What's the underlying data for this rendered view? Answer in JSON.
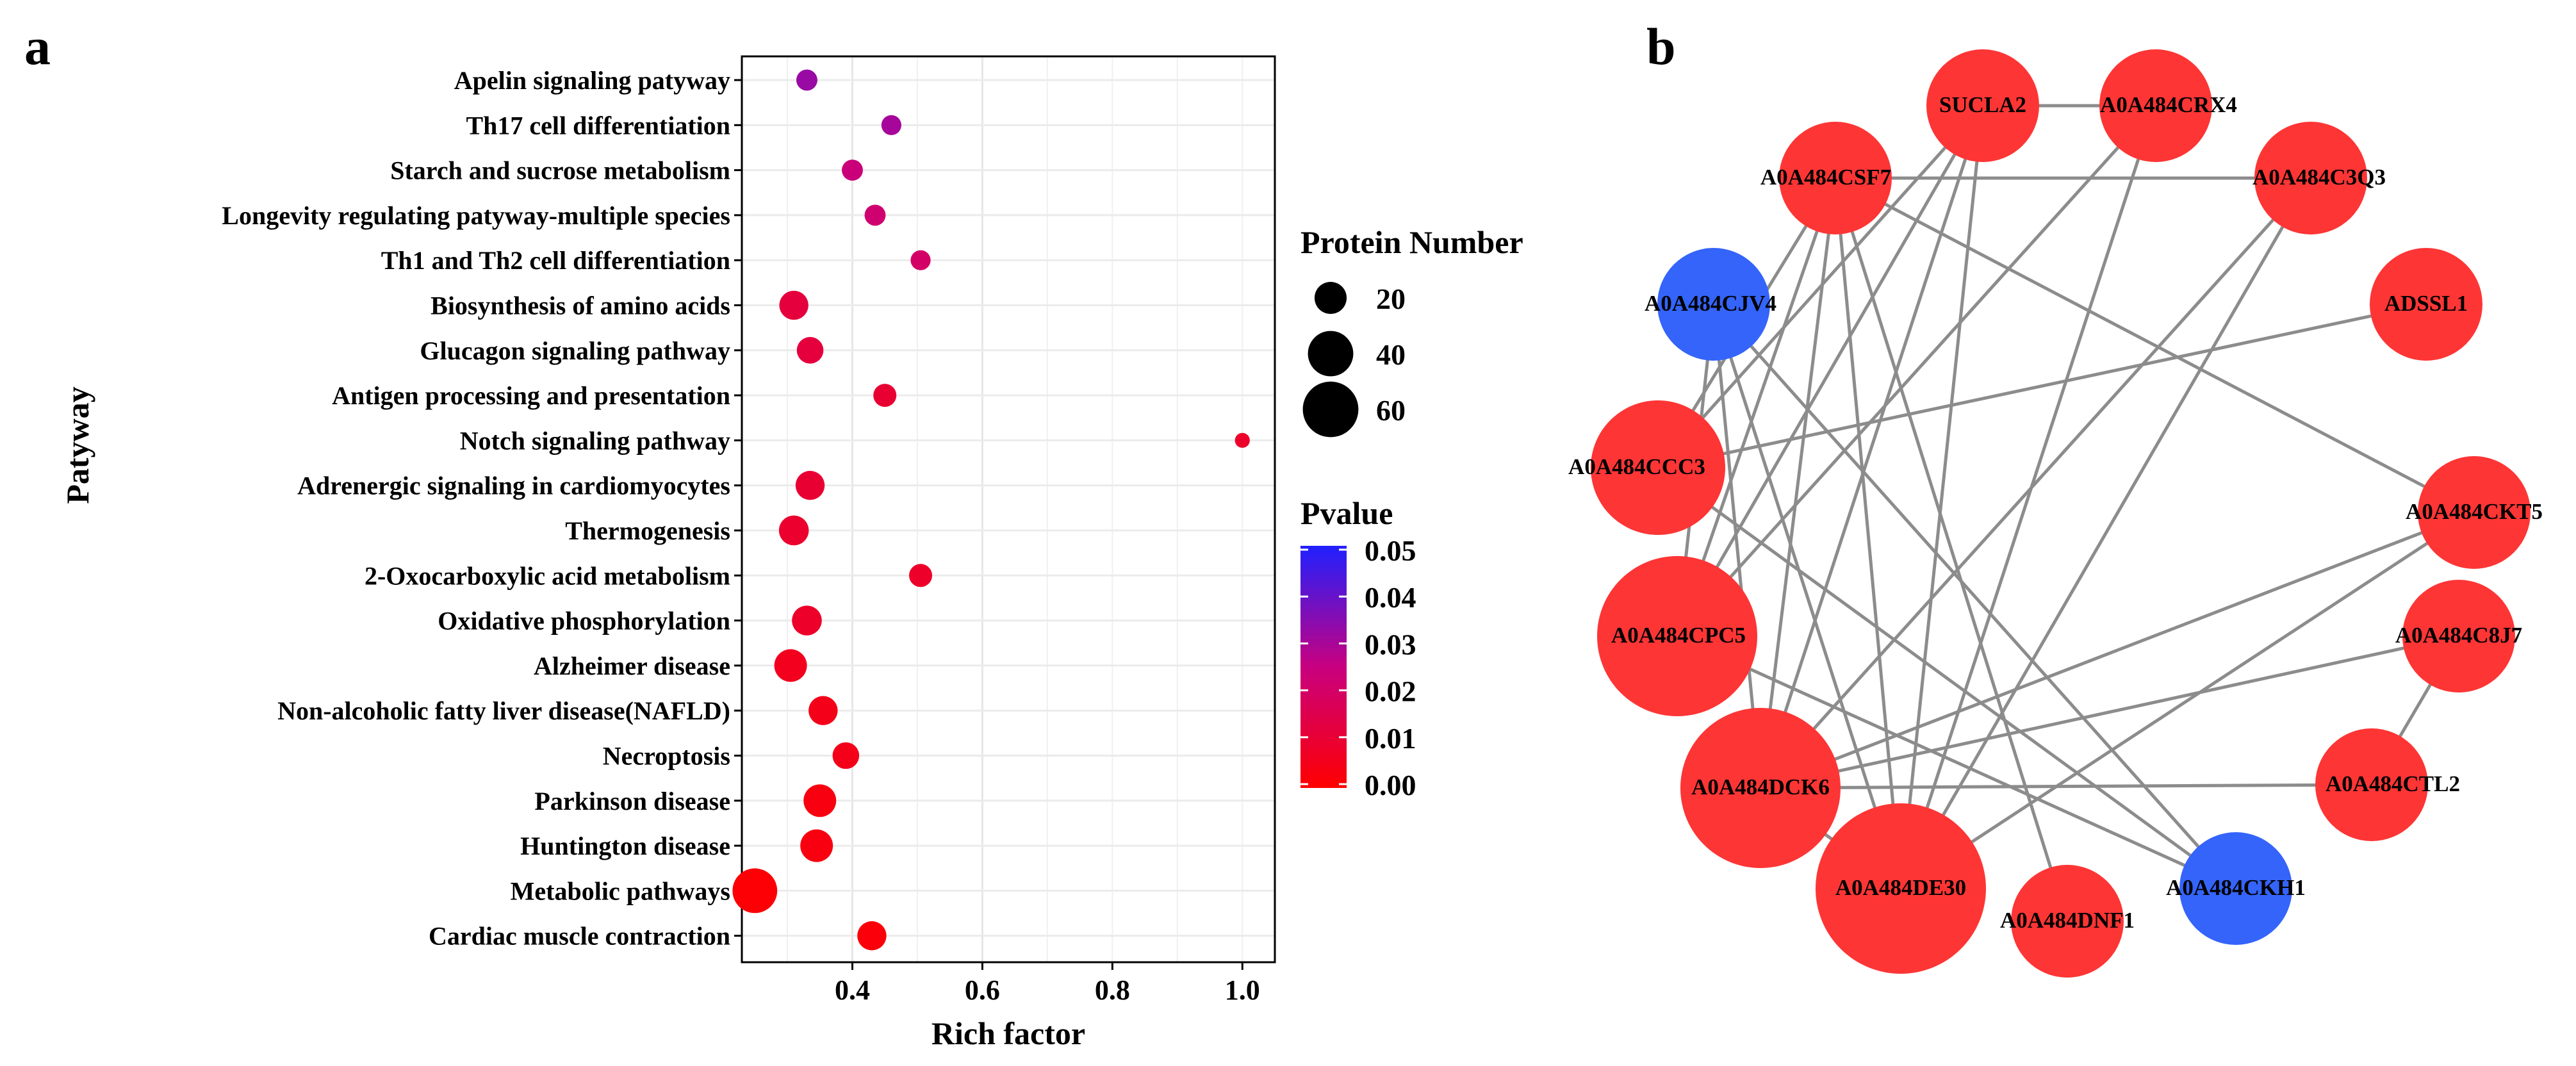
{
  "panel_labels": [
    "a",
    "b"
  ],
  "chart_data": [
    {
      "type": "scatter",
      "xlabel": "Rich factor",
      "ylabel": "Patyway",
      "xlim": [
        0.23,
        1.05
      ],
      "xticks": [
        0.4,
        0.6,
        0.8,
        1.0
      ],
      "xtick_labels": [
        "0.4",
        "0.6",
        "0.8",
        "1.0"
      ],
      "grid": true,
      "size_legend": {
        "title": "Protein Number",
        "values": [
          20,
          40,
          60
        ]
      },
      "color_legend": {
        "title": "Pvalue",
        "min": 0.0,
        "max": 0.05,
        "ticks": [
          "0.05",
          "0.04",
          "0.03",
          "0.02",
          "0.01",
          "0.00"
        ],
        "low_color": "#ff0000",
        "mid_color": "#c8007f",
        "high_color": "#2020ff"
      },
      "points": [
        {
          "pathway": "Apelin signaling patyway",
          "rich_factor": 0.33,
          "pvalue": 0.032,
          "count": 10
        },
        {
          "pathway": "Th17 cell differentiation",
          "rich_factor": 0.46,
          "pvalue": 0.03,
          "count": 9
        },
        {
          "pathway": "Starch and sucrose metabolism",
          "rich_factor": 0.4,
          "pvalue": 0.024,
          "count": 10
        },
        {
          "pathway": "Longevity regulating patyway-multiple species",
          "rich_factor": 0.435,
          "pvalue": 0.022,
          "count": 10
        },
        {
          "pathway": "Th1 and Th2 cell differentiation",
          "rich_factor": 0.505,
          "pvalue": 0.02,
          "count": 9
        },
        {
          "pathway": "Biosynthesis of amino acids",
          "rich_factor": 0.31,
          "pvalue": 0.012,
          "count": 19
        },
        {
          "pathway": "Glucagon signaling pathway",
          "rich_factor": 0.335,
          "pvalue": 0.012,
          "count": 16
        },
        {
          "pathway": "Antigen processing and presentation",
          "rich_factor": 0.45,
          "pvalue": 0.01,
          "count": 12
        },
        {
          "pathway": "Notch signaling pathway",
          "rich_factor": 1.0,
          "pvalue": 0.008,
          "count": 5
        },
        {
          "pathway": "Adrenergic signaling in cardiomyocytes",
          "rich_factor": 0.335,
          "pvalue": 0.01,
          "count": 19
        },
        {
          "pathway": "Thermogenesis",
          "rich_factor": 0.31,
          "pvalue": 0.009,
          "count": 20
        },
        {
          "pathway": "2-Oxocarboxylic acid metabolism",
          "rich_factor": 0.505,
          "pvalue": 0.008,
          "count": 12
        },
        {
          "pathway": "Oxidative phosphorylation",
          "rich_factor": 0.33,
          "pvalue": 0.008,
          "count": 20
        },
        {
          "pathway": "Alzheimer disease",
          "rich_factor": 0.305,
          "pvalue": 0.006,
          "count": 24
        },
        {
          "pathway": "Non-alcoholic fatty liver disease(NAFLD)",
          "rich_factor": 0.355,
          "pvalue": 0.005,
          "count": 19
        },
        {
          "pathway": "Necroptosis",
          "rich_factor": 0.39,
          "pvalue": 0.005,
          "count": 16
        },
        {
          "pathway": "Parkinson disease",
          "rich_factor": 0.35,
          "pvalue": 0.003,
          "count": 24
        },
        {
          "pathway": "Huntington disease",
          "rich_factor": 0.345,
          "pvalue": 0.003,
          "count": 24
        },
        {
          "pathway": "Metabolic pathways",
          "rich_factor": 0.25,
          "pvalue": 0.001,
          "count": 45
        },
        {
          "pathway": "Cardiac muscle contraction",
          "rich_factor": 0.43,
          "pvalue": 0.002,
          "count": 19
        }
      ]
    },
    {
      "type": "network",
      "node_colors": {
        "red": "#fe3535",
        "blue": "#3464fa"
      },
      "edge_color": "#8c8c8c",
      "nodes": [
        {
          "id": "SUCLA2",
          "color": "red",
          "size": 2
        },
        {
          "id": "A0A484CRX4",
          "color": "red",
          "size": 2
        },
        {
          "id": "A0A484CSF7",
          "color": "red",
          "size": 2
        },
        {
          "id": "A0A484C3Q3",
          "color": "red",
          "size": 2
        },
        {
          "id": "A0A484CJV4",
          "color": "blue",
          "size": 2
        },
        {
          "id": "ADSSL1",
          "color": "red",
          "size": 2
        },
        {
          "id": "A0A484CCC3",
          "color": "red",
          "size": 3
        },
        {
          "id": "A0A484CKT5",
          "color": "red",
          "size": 2
        },
        {
          "id": "A0A484CPC5",
          "color": "red",
          "size": 4
        },
        {
          "id": "A0A484C8J7",
          "color": "red",
          "size": 2
        },
        {
          "id": "A0A484DCK6",
          "color": "red",
          "size": 5
        },
        {
          "id": "A0A484CTL2",
          "color": "red",
          "size": 2
        },
        {
          "id": "A0A484DE30",
          "color": "red",
          "size": 6
        },
        {
          "id": "A0A484DNF1",
          "color": "red",
          "size": 2
        },
        {
          "id": "A0A484CKH1",
          "color": "blue",
          "size": 2
        }
      ],
      "edges": [
        [
          "SUCLA2",
          "A0A484CRX4"
        ],
        [
          "SUCLA2",
          "A0A484CCC3"
        ],
        [
          "SUCLA2",
          "A0A484CPC5"
        ],
        [
          "SUCLA2",
          "A0A484DCK6"
        ],
        [
          "SUCLA2",
          "A0A484DE30"
        ],
        [
          "A0A484CRX4",
          "A0A484CPC5"
        ],
        [
          "A0A484CRX4",
          "A0A484DE30"
        ],
        [
          "A0A484CSF7",
          "A0A484C3Q3"
        ],
        [
          "A0A484CSF7",
          "A0A484CKT5"
        ],
        [
          "A0A484CSF7",
          "A0A484CCC3"
        ],
        [
          "A0A484CSF7",
          "A0A484CPC5"
        ],
        [
          "A0A484CSF7",
          "A0A484DCK6"
        ],
        [
          "A0A484CSF7",
          "A0A484DE30"
        ],
        [
          "A0A484CSF7",
          "A0A484DNF1"
        ],
        [
          "A0A484C3Q3",
          "A0A484DCK6"
        ],
        [
          "A0A484C3Q3",
          "A0A484DE30"
        ],
        [
          "A0A484CJV4",
          "A0A484CPC5"
        ],
        [
          "A0A484CJV4",
          "A0A484DCK6"
        ],
        [
          "A0A484CJV4",
          "A0A484DE30"
        ],
        [
          "A0A484CJV4",
          "A0A484CKH1"
        ],
        [
          "ADSSL1",
          "A0A484CCC3"
        ],
        [
          "A0A484CCC3",
          "A0A484CKH1"
        ],
        [
          "A0A484CKT5",
          "A0A484DCK6"
        ],
        [
          "A0A484CKT5",
          "A0A484DE30"
        ],
        [
          "A0A484CPC5",
          "A0A484CKH1"
        ],
        [
          "A0A484C8J7",
          "A0A484DCK6"
        ],
        [
          "A0A484C8J7",
          "A0A484CTL2"
        ],
        [
          "A0A484DCK6",
          "A0A484CTL2"
        ],
        [
          "A0A484DCK6",
          "A0A484DE30"
        ]
      ]
    }
  ]
}
